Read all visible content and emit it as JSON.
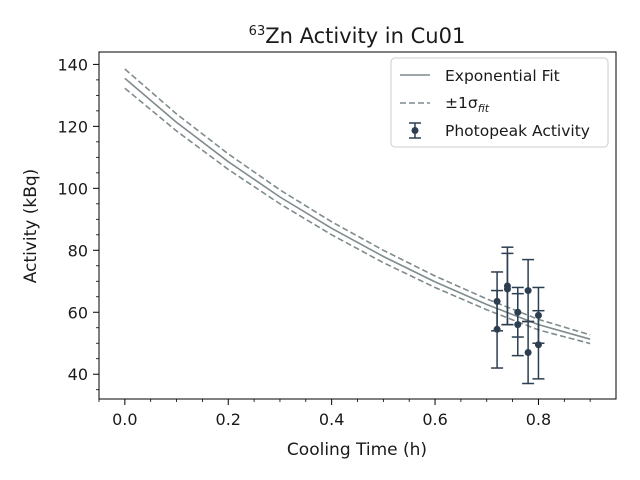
{
  "chart_data": {
    "type": "scatter",
    "title_sup": "63",
    "title_main": "Zn Activity in Cu01",
    "xlabel": "Cooling Time (h)",
    "ylabel": "Activity (kBq)",
    "xlim": [
      -0.05,
      0.95
    ],
    "ylim": [
      32,
      144
    ],
    "xticks": [
      0.0,
      0.2,
      0.4,
      0.6,
      0.8
    ],
    "xtick_labels": [
      "0.0",
      "0.2",
      "0.4",
      "0.6",
      "0.8"
    ],
    "yticks": [
      40,
      60,
      80,
      100,
      120,
      140
    ],
    "ytick_labels": [
      "40",
      "60",
      "80",
      "100",
      "120",
      "140"
    ],
    "legend_position": "top-right",
    "legend": {
      "fit_label": "Exponential Fit",
      "band_label_prefix": "±1σ",
      "band_label_sub": "fit",
      "points_label": "Photopeak Activity"
    },
    "fit": {
      "x": [
        0.0,
        0.1,
        0.2,
        0.3,
        0.4,
        0.5,
        0.6,
        0.7,
        0.8,
        0.9
      ],
      "y": [
        135.5,
        121.3,
        108.6,
        97.2,
        87.1,
        78.0,
        69.8,
        62.5,
        56.0,
        51.3
      ],
      "upper": [
        138.5,
        124.0,
        111.1,
        99.5,
        89.2,
        80.0,
        71.7,
        64.3,
        57.7,
        52.7
      ],
      "lower": [
        132.3,
        118.5,
        106.1,
        95.0,
        85.0,
        76.0,
        68.0,
        60.8,
        54.3,
        49.9
      ]
    },
    "series": [
      {
        "name": "Photopeak Activity",
        "x": [
          0.72,
          0.72,
          0.74,
          0.74,
          0.76,
          0.76,
          0.78,
          0.78,
          0.8,
          0.8
        ],
        "y": [
          63.5,
          54.5,
          68.5,
          67.5,
          60.0,
          56.0,
          67.0,
          47.0,
          59.0,
          49.5
        ],
        "yerr": [
          9.5,
          12.5,
          12.5,
          11.5,
          8.0,
          10.0,
          10.0,
          10.0,
          9.0,
          11.0
        ]
      }
    ],
    "colors": {
      "fit": "#7f8c8d",
      "points": "#2c3e50"
    }
  }
}
